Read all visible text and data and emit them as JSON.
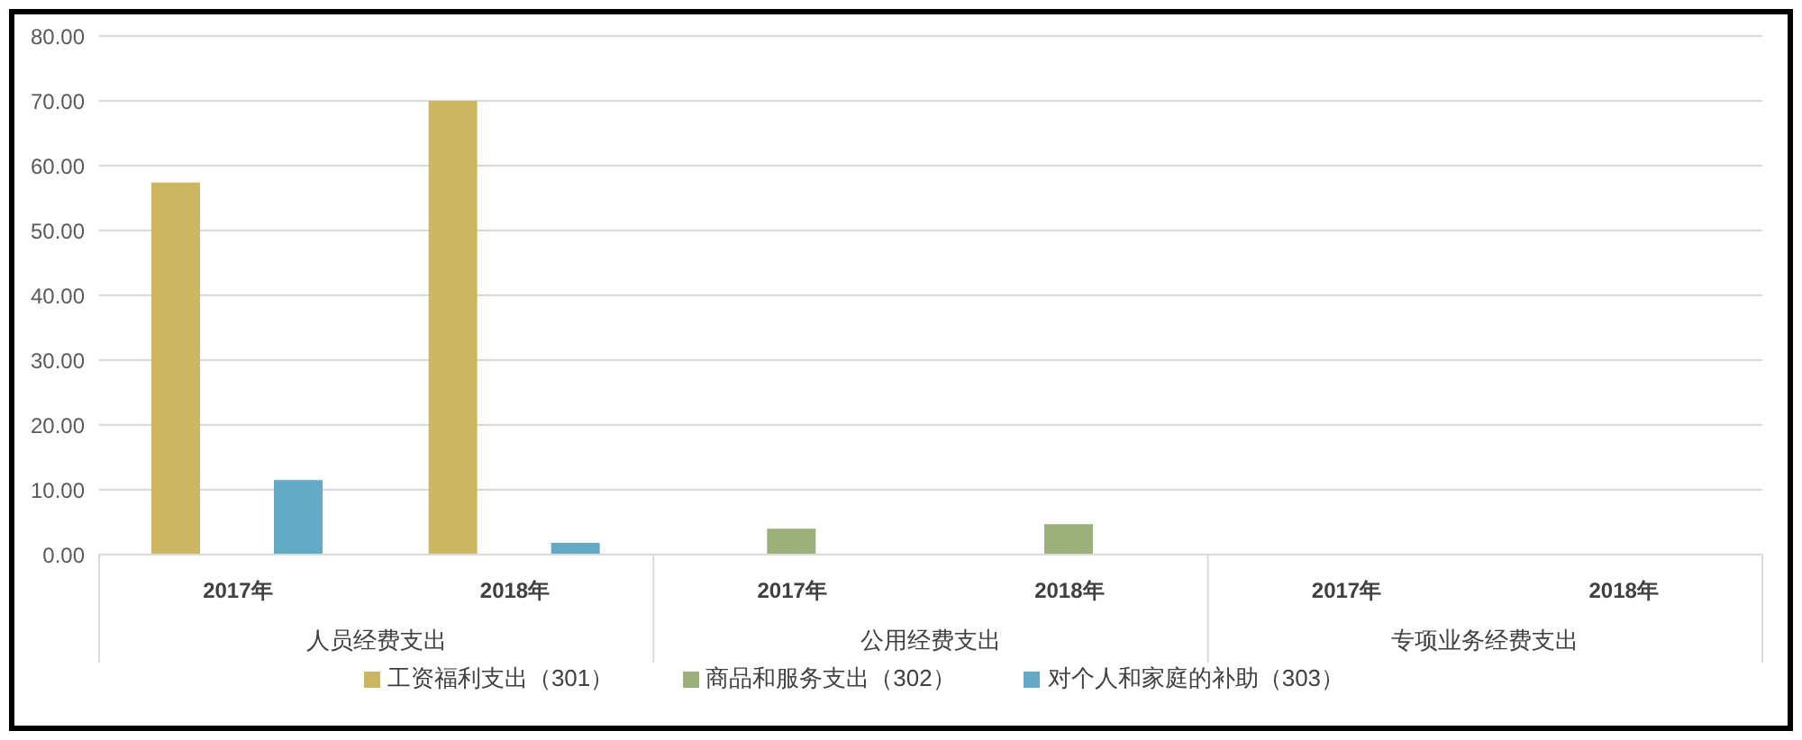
{
  "chart_data": {
    "type": "bar",
    "categories": [
      "2017年",
      "2018年",
      "2017年",
      "2018年",
      "2017年",
      "2018年"
    ],
    "annotations": [
      "人员经费支出",
      "公用经费支出",
      "专项业务经费支出"
    ],
    "series": [
      {
        "name": "工资福利支出（301）",
        "color": "#cdb662",
        "values": [
          57.4,
          70.0,
          null,
          null,
          null,
          null
        ]
      },
      {
        "name": "商品和服务支出（302）",
        "color": "#9bb07b",
        "values": [
          null,
          null,
          4.0,
          4.7,
          null,
          null
        ]
      },
      {
        "name": "对个人和家庭的补助（303）",
        "color": "#62aac6",
        "values": [
          11.5,
          1.8,
          null,
          null,
          null,
          null
        ]
      }
    ],
    "ylim": [
      0,
      80
    ],
    "yticks": [
      {
        "value": 0,
        "label": "0.00"
      },
      {
        "value": 10,
        "label": "10.00"
      },
      {
        "value": 20,
        "label": "20.00"
      },
      {
        "value": 30,
        "label": "30.00"
      },
      {
        "value": 40,
        "label": "40.00"
      },
      {
        "value": 50,
        "label": "50.00"
      },
      {
        "value": 60,
        "label": "60.00"
      },
      {
        "value": 70,
        "label": "70.00"
      },
      {
        "value": 80,
        "label": "80.00"
      }
    ],
    "grid": "y",
    "legend": "bottom"
  }
}
